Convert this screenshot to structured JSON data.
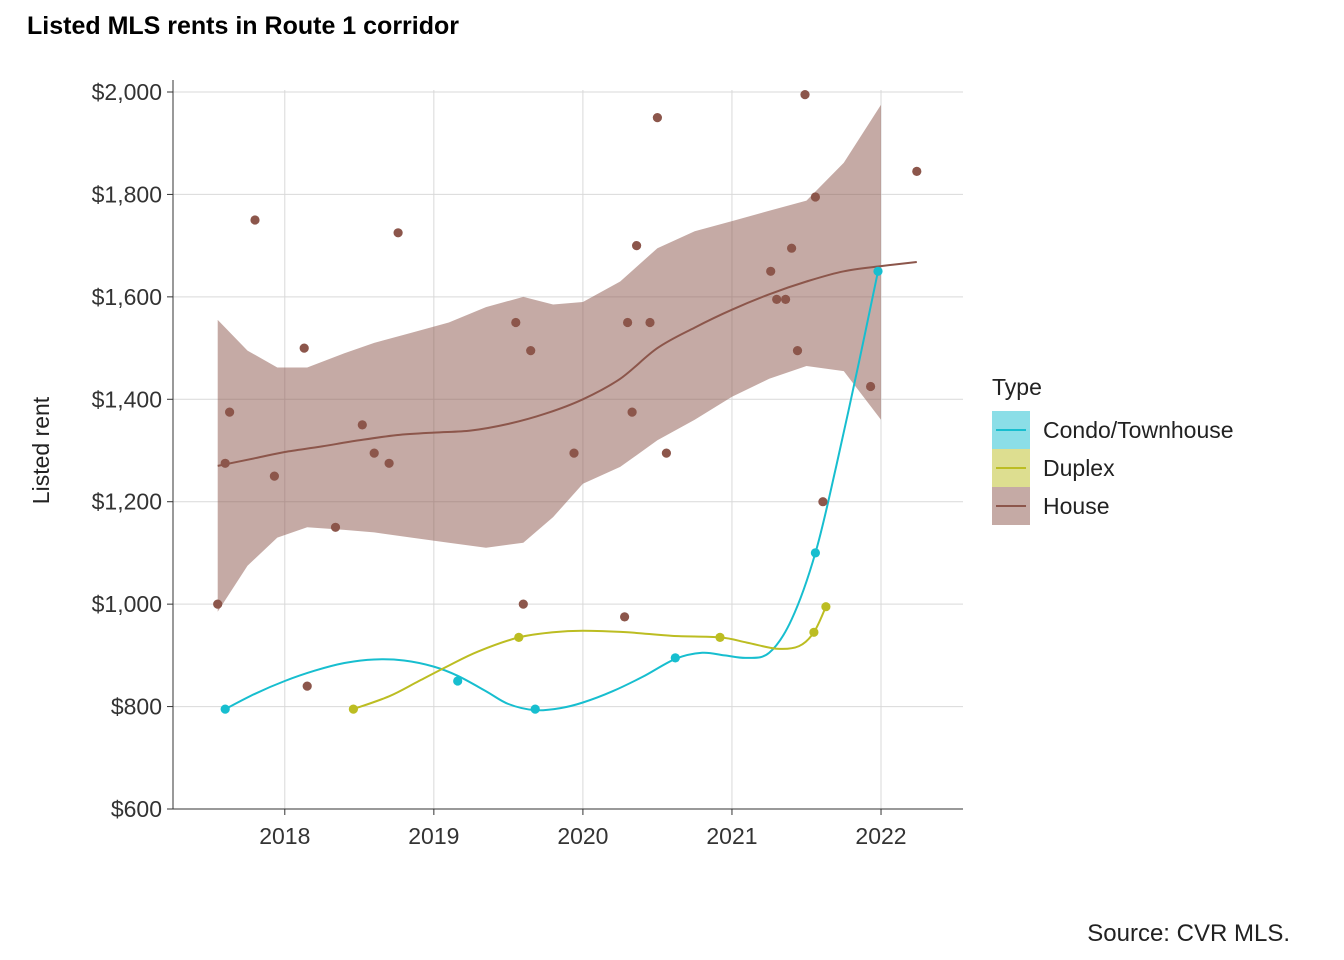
{
  "title": "Listed MLS rents in Route 1 corridor",
  "caption": "Source: CVR MLS.",
  "legend": {
    "title": "Type",
    "items": [
      {
        "label": "Condo/Townhouse",
        "color": "#17becf"
      },
      {
        "label": "Duplex",
        "color": "#bcbd22"
      },
      {
        "label": "House",
        "color": "#8c564b"
      }
    ]
  },
  "chart_data": {
    "type": "scatter",
    "ylabel": "Listed rent",
    "xlabel": "",
    "xlim": [
      2017.25,
      2022.55
    ],
    "ylim": [
      600,
      2000
    ],
    "x_ticks": [
      2018,
      2019,
      2020,
      2021,
      2022
    ],
    "x_tick_labels": [
      "2018",
      "2019",
      "2020",
      "2021",
      "2022"
    ],
    "y_ticks": [
      600,
      800,
      1000,
      1200,
      1400,
      1600,
      1800,
      2000
    ],
    "y_tick_labels": [
      "$600",
      "$800",
      "$1,000",
      "$1,200",
      "$1,400",
      "$1,600",
      "$1,800",
      "$2,000"
    ],
    "grid": true,
    "legend_position": "right",
    "series": [
      {
        "name": "Condo/Townhouse",
        "color": "#17becf",
        "points": [
          [
            2017.6,
            795
          ],
          [
            2019.16,
            850
          ],
          [
            2019.68,
            795
          ],
          [
            2020.62,
            895
          ],
          [
            2021.56,
            1100
          ],
          [
            2021.98,
            1650
          ]
        ],
        "smooth": [
          [
            2017.6,
            795
          ],
          [
            2017.8,
            825
          ],
          [
            2018.0,
            850
          ],
          [
            2018.2,
            870
          ],
          [
            2018.4,
            885
          ],
          [
            2018.6,
            892
          ],
          [
            2018.8,
            890
          ],
          [
            2019.0,
            878
          ],
          [
            2019.16,
            860
          ],
          [
            2019.35,
            830
          ],
          [
            2019.5,
            805
          ],
          [
            2019.68,
            793
          ],
          [
            2019.85,
            797
          ],
          [
            2020.0,
            808
          ],
          [
            2020.2,
            830
          ],
          [
            2020.4,
            858
          ],
          [
            2020.62,
            893
          ],
          [
            2020.8,
            905
          ],
          [
            2020.95,
            900
          ],
          [
            2021.1,
            895
          ],
          [
            2021.25,
            905
          ],
          [
            2021.4,
            970
          ],
          [
            2021.56,
            1100
          ],
          [
            2021.7,
            1270
          ],
          [
            2021.85,
            1470
          ],
          [
            2021.98,
            1650
          ]
        ]
      },
      {
        "name": "Duplex",
        "color": "#bcbd22",
        "points": [
          [
            2018.46,
            795
          ],
          [
            2019.57,
            935
          ],
          [
            2020.92,
            935
          ],
          [
            2021.55,
            945
          ],
          [
            2021.63,
            995
          ]
        ],
        "smooth": [
          [
            2018.46,
            795
          ],
          [
            2018.7,
            820
          ],
          [
            2018.9,
            850
          ],
          [
            2019.1,
            880
          ],
          [
            2019.3,
            908
          ],
          [
            2019.57,
            935
          ],
          [
            2019.8,
            945
          ],
          [
            2020.0,
            948
          ],
          [
            2020.3,
            945
          ],
          [
            2020.6,
            938
          ],
          [
            2020.92,
            935
          ],
          [
            2021.1,
            925
          ],
          [
            2021.3,
            913
          ],
          [
            2021.45,
            918
          ],
          [
            2021.55,
            945
          ],
          [
            2021.63,
            995
          ]
        ]
      },
      {
        "name": "House",
        "color": "#8c564b",
        "points": [
          [
            2017.55,
            1000
          ],
          [
            2017.6,
            1275
          ],
          [
            2017.63,
            1375
          ],
          [
            2017.8,
            1750
          ],
          [
            2017.93,
            1250
          ],
          [
            2018.13,
            1500
          ],
          [
            2018.15,
            840
          ],
          [
            2018.34,
            1150
          ],
          [
            2018.52,
            1350
          ],
          [
            2018.6,
            1295
          ],
          [
            2018.7,
            1275
          ],
          [
            2018.76,
            1725
          ],
          [
            2019.55,
            1550
          ],
          [
            2019.6,
            1000
          ],
          [
            2019.65,
            1495
          ],
          [
            2019.94,
            1295
          ],
          [
            2020.28,
            975
          ],
          [
            2020.3,
            1550
          ],
          [
            2020.33,
            1375
          ],
          [
            2020.36,
            1700
          ],
          [
            2020.45,
            1550
          ],
          [
            2020.5,
            1950
          ],
          [
            2020.56,
            1295
          ],
          [
            2021.26,
            1650
          ],
          [
            2021.3,
            1595
          ],
          [
            2021.36,
            1595
          ],
          [
            2021.4,
            1695
          ],
          [
            2021.44,
            1495
          ],
          [
            2021.49,
            1995
          ],
          [
            2021.56,
            1795
          ],
          [
            2021.61,
            1200
          ],
          [
            2021.93,
            1425
          ],
          [
            2022.24,
            1845
          ]
        ],
        "smooth": [
          [
            2017.55,
            1270
          ],
          [
            2017.8,
            1285
          ],
          [
            2018.0,
            1297
          ],
          [
            2018.25,
            1308
          ],
          [
            2018.5,
            1320
          ],
          [
            2018.75,
            1330
          ],
          [
            2019.0,
            1335
          ],
          [
            2019.25,
            1339
          ],
          [
            2019.5,
            1352
          ],
          [
            2019.75,
            1372
          ],
          [
            2020.0,
            1400
          ],
          [
            2020.25,
            1440
          ],
          [
            2020.5,
            1500
          ],
          [
            2020.75,
            1540
          ],
          [
            2021.0,
            1575
          ],
          [
            2021.25,
            1605
          ],
          [
            2021.5,
            1630
          ],
          [
            2021.75,
            1650
          ],
          [
            2022.0,
            1660
          ],
          [
            2022.24,
            1668
          ]
        ],
        "ribbon_upper": [
          [
            2017.55,
            1555
          ],
          [
            2017.75,
            1495
          ],
          [
            2017.95,
            1462
          ],
          [
            2018.15,
            1462
          ],
          [
            2018.4,
            1490
          ],
          [
            2018.6,
            1510
          ],
          [
            2018.85,
            1530
          ],
          [
            2019.1,
            1550
          ],
          [
            2019.35,
            1580
          ],
          [
            2019.6,
            1600
          ],
          [
            2019.8,
            1585
          ],
          [
            2020.0,
            1590
          ],
          [
            2020.25,
            1630
          ],
          [
            2020.5,
            1695
          ],
          [
            2020.75,
            1728
          ],
          [
            2021.0,
            1748
          ],
          [
            2021.25,
            1768
          ],
          [
            2021.5,
            1788
          ],
          [
            2021.75,
            1862
          ],
          [
            2022.0,
            1975
          ]
        ],
        "ribbon_lower": [
          [
            2017.55,
            985
          ],
          [
            2017.75,
            1075
          ],
          [
            2017.95,
            1130
          ],
          [
            2018.15,
            1150
          ],
          [
            2018.4,
            1145
          ],
          [
            2018.6,
            1140
          ],
          [
            2018.85,
            1130
          ],
          [
            2019.1,
            1120
          ],
          [
            2019.35,
            1110
          ],
          [
            2019.6,
            1120
          ],
          [
            2019.8,
            1170
          ],
          [
            2020.0,
            1235
          ],
          [
            2020.25,
            1268
          ],
          [
            2020.5,
            1320
          ],
          [
            2020.75,
            1360
          ],
          [
            2021.0,
            1405
          ],
          [
            2021.25,
            1440
          ],
          [
            2021.5,
            1465
          ],
          [
            2021.75,
            1455
          ],
          [
            2022.0,
            1360
          ]
        ]
      }
    ]
  }
}
